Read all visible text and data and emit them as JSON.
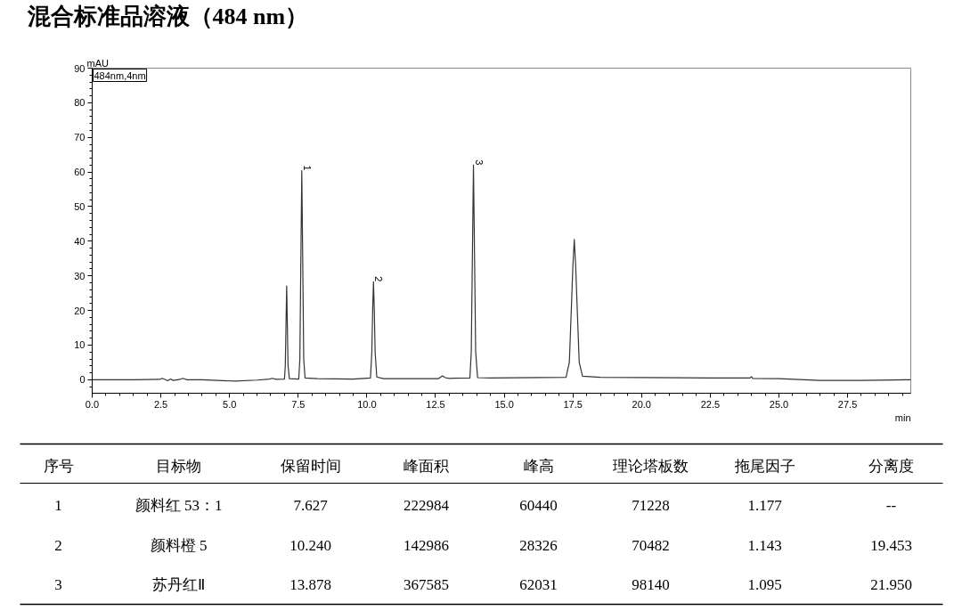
{
  "chart_data": [
    {
      "type": "line",
      "title": "混合标准品溶液（484 nm）",
      "xlabel": "min",
      "ylabel": "mAU",
      "x": [
        0.0,
        1.5,
        2.45,
        2.55,
        2.65,
        2.75,
        2.85,
        2.95,
        3.2,
        3.3,
        3.45,
        4.0,
        5.2,
        6.0,
        6.45,
        6.55,
        6.7,
        7.0,
        7.03,
        7.06,
        7.08,
        7.1,
        7.13,
        7.18,
        7.52,
        7.56,
        7.59,
        7.63,
        7.67,
        7.7,
        7.75,
        8.2,
        9.5,
        10.13,
        10.18,
        10.21,
        10.24,
        10.27,
        10.3,
        10.36,
        10.6,
        12.6,
        12.75,
        12.85,
        13.0,
        13.75,
        13.8,
        13.84,
        13.88,
        13.92,
        13.96,
        14.03,
        14.5,
        17.25,
        17.37,
        17.45,
        17.5,
        17.55,
        17.6,
        17.65,
        17.73,
        17.85,
        18.5,
        22.5,
        23.95,
        24.0,
        24.05,
        25.0,
        26.5,
        28.0,
        29.8
      ],
      "values": [
        0.0,
        0.0,
        0.1,
        0.4,
        0.1,
        -0.3,
        0.2,
        -0.2,
        0.1,
        0.4,
        0.0,
        0.0,
        -0.4,
        -0.1,
        0.2,
        0.4,
        0.1,
        0.2,
        4,
        18,
        27.1,
        18,
        4,
        0.3,
        0.2,
        6,
        30,
        60.4,
        30,
        6,
        0.5,
        0.3,
        0.2,
        0.5,
        8,
        20,
        28.3,
        20,
        8,
        0.8,
        0.3,
        0.3,
        1.1,
        0.6,
        0.4,
        0.5,
        8,
        35,
        62.0,
        35,
        8,
        0.6,
        0.5,
        0.7,
        5,
        22,
        33,
        40.5,
        33,
        22,
        5,
        1.0,
        0.7,
        0.5,
        0.5,
        0.9,
        0.4,
        0.3,
        -0.2,
        -0.2,
        0.0
      ],
      "color": "#333333",
      "xlim": [
        0,
        29.8
      ],
      "ylim": [
        -3.9,
        90
      ],
      "xticks": [
        {
          "value": 0,
          "label": "0.0"
        },
        2.5,
        {
          "value": 5,
          "label": "5.0"
        },
        7.5,
        {
          "value": 10,
          "label": "10.0"
        },
        12.5,
        {
          "value": 15,
          "label": "15.0"
        },
        17.5,
        {
          "value": 20,
          "label": "20.0"
        },
        22.5,
        {
          "value": 25,
          "label": "25.0"
        },
        27.5
      ],
      "yticks": [
        0,
        10,
        20,
        30,
        40,
        50,
        60,
        70,
        80,
        90
      ],
      "annotations": [
        "484nm,4nm",
        {
          "text": "1",
          "x": 7.63,
          "y": 60.4
        },
        {
          "text": "2",
          "x": 10.24,
          "y": 28.3
        },
        {
          "text": "3",
          "x": 13.88,
          "y": 62.0
        }
      ],
      "grid": false,
      "line_style": "solid"
    },
    {
      "type": "other",
      "categories": [
        "序号",
        "目标物",
        "保留时间",
        "峰面积",
        "峰高",
        "理论塔板数",
        "拖尾因子",
        "分离度"
      ],
      "cell_labels": [
        [
          "1",
          "颜料红 53：1",
          "7.627",
          "222984",
          "60440",
          "71228",
          "1.177",
          "--"
        ],
        [
          "2",
          "颜料橙 5",
          "10.240",
          "142986",
          "28326",
          "70482",
          "1.143",
          "19.453"
        ],
        [
          "3",
          "苏丹红Ⅱ",
          "13.878",
          "367585",
          "62031",
          "98140",
          "1.095",
          "21.950"
        ]
      ]
    }
  ]
}
